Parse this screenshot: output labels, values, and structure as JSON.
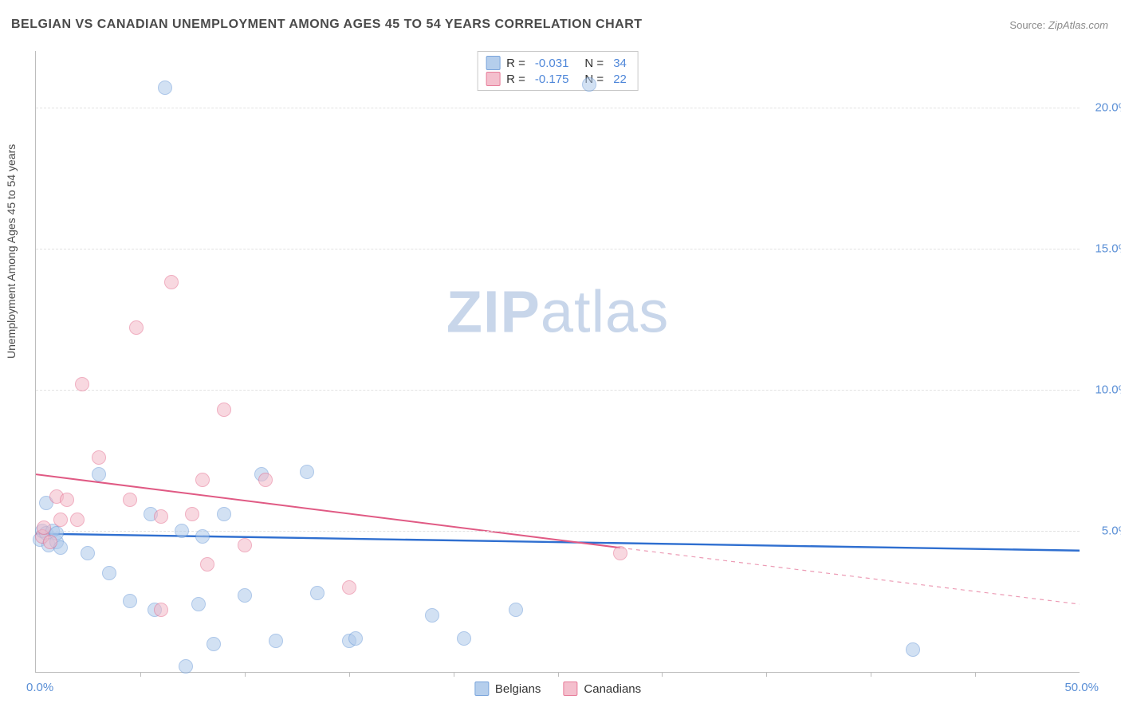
{
  "title": "BELGIAN VS CANADIAN UNEMPLOYMENT AMONG AGES 45 TO 54 YEARS CORRELATION CHART",
  "source_label": "Source:",
  "source_value": "ZipAtlas.com",
  "ylabel": "Unemployment Among Ages 45 to 54 years",
  "watermark_a": "ZIP",
  "watermark_b": "atlas",
  "chart": {
    "type": "scatter",
    "xlim": [
      0,
      50
    ],
    "ylim": [
      0,
      22
    ],
    "xtick_step": 5,
    "ytick_labels": [
      {
        "v": 5.0,
        "text": "5.0%"
      },
      {
        "v": 10.0,
        "text": "10.0%"
      },
      {
        "v": 15.0,
        "text": "15.0%"
      },
      {
        "v": 20.0,
        "text": "20.0%"
      }
    ],
    "xlabel_min": "0.0%",
    "xlabel_max": "50.0%",
    "background_color": "#ffffff",
    "grid_color": "#e2e2e2",
    "axis_color": "#bdbdbd",
    "marker_radius": 9,
    "marker_border": 1.2,
    "series": [
      {
        "key": "belgians",
        "label": "Belgians",
        "fill": "#aec9ea",
        "fill_opacity": 0.55,
        "stroke": "#6b9bd8",
        "line_color": "#2f6fd0",
        "line_width": 2.4,
        "R": "-0.031",
        "N": "34",
        "trend": {
          "x1": 0,
          "y1": 4.9,
          "x2": 50,
          "y2": 4.3,
          "dash": false,
          "extend_dash": false
        },
        "points": [
          {
            "x": 0.2,
            "y": 4.7
          },
          {
            "x": 0.3,
            "y": 5.0
          },
          {
            "x": 0.5,
            "y": 4.9
          },
          {
            "x": 0.5,
            "y": 6.0
          },
          {
            "x": 0.6,
            "y": 4.5
          },
          {
            "x": 0.8,
            "y": 5.0
          },
          {
            "x": 1.0,
            "y": 4.6
          },
          {
            "x": 1.0,
            "y": 4.9
          },
          {
            "x": 1.2,
            "y": 4.4
          },
          {
            "x": 2.5,
            "y": 4.2
          },
          {
            "x": 3.0,
            "y": 7.0
          },
          {
            "x": 3.5,
            "y": 3.5
          },
          {
            "x": 4.5,
            "y": 2.5
          },
          {
            "x": 5.5,
            "y": 5.6
          },
          {
            "x": 5.7,
            "y": 2.2
          },
          {
            "x": 6.2,
            "y": 20.7
          },
          {
            "x": 7.0,
            "y": 5.0
          },
          {
            "x": 7.2,
            "y": 0.2
          },
          {
            "x": 7.8,
            "y": 2.4
          },
          {
            "x": 8.0,
            "y": 4.8
          },
          {
            "x": 8.5,
            "y": 1.0
          },
          {
            "x": 9.0,
            "y": 5.6
          },
          {
            "x": 10.0,
            "y": 2.7
          },
          {
            "x": 10.8,
            "y": 7.0
          },
          {
            "x": 11.5,
            "y": 1.1
          },
          {
            "x": 13.0,
            "y": 7.1
          },
          {
            "x": 13.5,
            "y": 2.8
          },
          {
            "x": 15.0,
            "y": 1.1
          },
          {
            "x": 15.3,
            "y": 1.2
          },
          {
            "x": 19.0,
            "y": 2.0
          },
          {
            "x": 20.5,
            "y": 1.2
          },
          {
            "x": 23.0,
            "y": 2.2
          },
          {
            "x": 26.5,
            "y": 20.8
          },
          {
            "x": 42.0,
            "y": 0.8
          }
        ]
      },
      {
        "key": "canadians",
        "label": "Canadians",
        "fill": "#f3b9c8",
        "fill_opacity": 0.55,
        "stroke": "#e56e8f",
        "line_color": "#e05a84",
        "line_width": 2.0,
        "R": "-0.175",
        "N": "22",
        "trend": {
          "x1": 0,
          "y1": 7.0,
          "x2": 28,
          "y2": 4.4,
          "dash": false,
          "extend_dash": true,
          "ex2": 50,
          "ey2": 2.4
        },
        "points": [
          {
            "x": 0.3,
            "y": 4.8
          },
          {
            "x": 0.4,
            "y": 5.1
          },
          {
            "x": 0.7,
            "y": 4.6
          },
          {
            "x": 1.0,
            "y": 6.2
          },
          {
            "x": 1.2,
            "y": 5.4
          },
          {
            "x": 1.5,
            "y": 6.1
          },
          {
            "x": 2.0,
            "y": 5.4
          },
          {
            "x": 2.2,
            "y": 10.2
          },
          {
            "x": 3.0,
            "y": 7.6
          },
          {
            "x": 4.5,
            "y": 6.1
          },
          {
            "x": 4.8,
            "y": 12.2
          },
          {
            "x": 6.0,
            "y": 5.5
          },
          {
            "x": 6.0,
            "y": 2.2
          },
          {
            "x": 6.5,
            "y": 13.8
          },
          {
            "x": 7.5,
            "y": 5.6
          },
          {
            "x": 8.0,
            "y": 6.8
          },
          {
            "x": 8.2,
            "y": 3.8
          },
          {
            "x": 9.0,
            "y": 9.3
          },
          {
            "x": 10.0,
            "y": 4.5
          },
          {
            "x": 11.0,
            "y": 6.8
          },
          {
            "x": 15.0,
            "y": 3.0
          },
          {
            "x": 28.0,
            "y": 4.2
          }
        ]
      }
    ],
    "stats_labels": {
      "R": "R =",
      "N": "N ="
    }
  }
}
